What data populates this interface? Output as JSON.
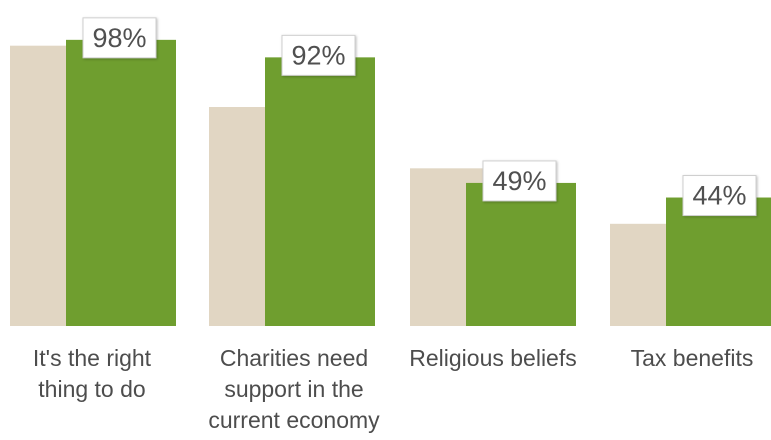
{
  "chart_data": {
    "type": "bar",
    "title": "",
    "xlabel": "",
    "ylabel": "",
    "categories": [
      [
        "It's the right",
        "thing to do"
      ],
      [
        "Charities need",
        "support in the",
        "current economy"
      ],
      [
        "Religious beliefs"
      ],
      [
        "Tax benefits"
      ]
    ],
    "series": [
      {
        "values": [
          96,
          75,
          54,
          35
        ],
        "color": "#e1d6c3"
      },
      {
        "values": [
          98,
          92,
          49,
          44
        ],
        "color": "#6f9e2f",
        "labels": [
          "98%",
          "92%",
          "49%",
          "44%"
        ]
      }
    ],
    "ylim": [
      0,
      100
    ],
    "grid": false,
    "legend": "none",
    "label_box_color": "#ffffff",
    "label_box_border": "#cfcfcf"
  }
}
